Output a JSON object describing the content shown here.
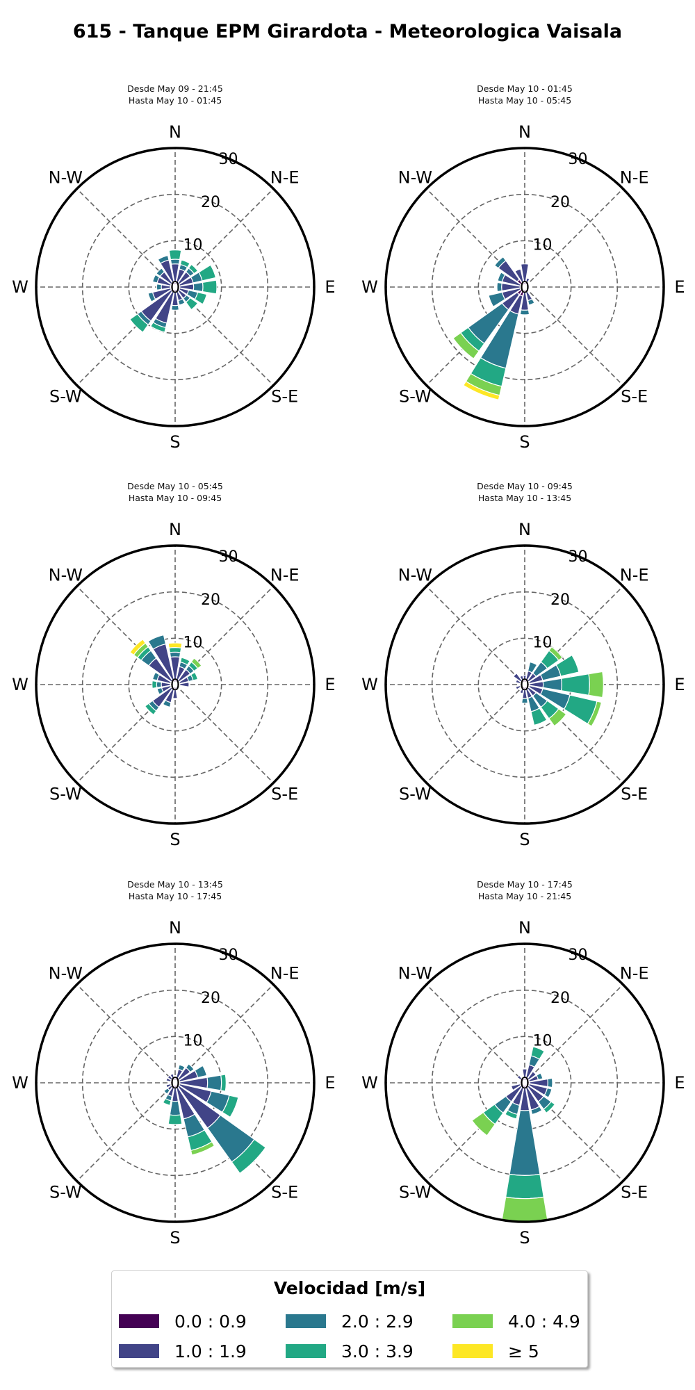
{
  "title": "615 - Tanque EPM Girardota - Meteorologica Vaisala",
  "legend": {
    "title": "Velocidad [m/s]",
    "items": [
      {
        "label": "0.0 : 0.9",
        "color": "#440154"
      },
      {
        "label": "1.0 : 1.9",
        "color": "#414487"
      },
      {
        "label": "2.0 : 2.9",
        "color": "#2a788e"
      },
      {
        "label": "3.0 : 3.9",
        "color": "#22a884"
      },
      {
        "label": "4.0 : 4.9",
        "color": "#7ad151"
      },
      {
        "label": "≥  5",
        "color": "#fde725"
      }
    ]
  },
  "chart_data": [
    {
      "type": "windrose",
      "title_lines": [
        "Desde May 09 - 21:45",
        "Hasta May 10 - 01:45"
      ],
      "direction_labels": [
        "N",
        "N-E",
        "E",
        "S-E",
        "S",
        "S-W",
        "W",
        "N-W"
      ],
      "radial_ticks": [
        0,
        10,
        20,
        30
      ],
      "rlim": [
        0,
        30
      ],
      "directions_deg": [
        0,
        22.5,
        45,
        67.5,
        90,
        112.5,
        135,
        157.5,
        180,
        202.5,
        225,
        247.5,
        270,
        292.5,
        315,
        337.5
      ],
      "bins": [
        "0.0 : 0.9",
        "1.0 : 1.9",
        "2.0 : 2.9",
        "3.0 : 3.9",
        "4.0 : 4.9",
        "≥  5"
      ],
      "frequency_percent": [
        [
          1,
          4,
          1,
          2,
          0,
          0
        ],
        [
          1,
          3,
          1,
          1,
          0,
          0
        ],
        [
          1,
          3,
          1,
          1,
          0,
          0
        ],
        [
          1,
          3,
          2,
          3,
          0,
          0
        ],
        [
          1,
          3,
          2,
          3,
          0,
          0
        ],
        [
          1,
          2,
          2,
          2,
          0,
          0
        ],
        [
          1,
          2,
          1,
          2,
          0,
          0
        ],
        [
          1,
          2,
          1,
          0,
          0,
          0
        ],
        [
          1,
          3,
          1,
          0,
          0,
          0
        ],
        [
          1,
          7,
          1,
          1,
          0,
          0
        ],
        [
          1,
          8,
          1,
          2,
          0,
          0
        ],
        [
          1,
          4,
          1,
          0,
          0,
          0
        ],
        [
          1,
          2,
          1,
          0,
          0,
          0
        ],
        [
          1,
          3,
          1,
          0,
          0,
          0
        ],
        [
          1,
          3,
          1,
          0,
          0,
          0
        ],
        [
          1,
          5,
          1,
          0,
          0,
          0
        ]
      ]
    },
    {
      "type": "windrose",
      "title_lines": [
        "Desde May 10 - 01:45",
        "Hasta May 10 - 05:45"
      ],
      "direction_labels": [
        "N",
        "N-E",
        "E",
        "S-E",
        "S",
        "S-W",
        "W",
        "N-W"
      ],
      "radial_ticks": [
        0,
        10,
        20,
        30
      ],
      "rlim": [
        0,
        30
      ],
      "directions_deg": [
        0,
        22.5,
        45,
        67.5,
        90,
        112.5,
        135,
        157.5,
        180,
        202.5,
        225,
        247.5,
        270,
        292.5,
        315,
        337.5
      ],
      "bins": [
        "0.0 : 0.9",
        "1.0 : 1.9",
        "2.0 : 2.9",
        "3.0 : 3.9",
        "4.0 : 4.9",
        "≥  5"
      ],
      "frequency_percent": [
        [
          1,
          4,
          0,
          0,
          0,
          0
        ],
        [
          1,
          1,
          0,
          0,
          0,
          0
        ],
        [
          0,
          1,
          0,
          0,
          0,
          0
        ],
        [
          0,
          1,
          0,
          0,
          0,
          0
        ],
        [
          0,
          1,
          0,
          0,
          0,
          0
        ],
        [
          0,
          1,
          0,
          0,
          0,
          0
        ],
        [
          0,
          1,
          0,
          0,
          0,
          0
        ],
        [
          1,
          2,
          1,
          0,
          0,
          0
        ],
        [
          1,
          4,
          1,
          0,
          0,
          0
        ],
        [
          2,
          4,
          12,
          4,
          2,
          1
        ],
        [
          2,
          4,
          9,
          2,
          2,
          0
        ],
        [
          1,
          4,
          3,
          0,
          0,
          0
        ],
        [
          1,
          4,
          1,
          0,
          0,
          0
        ],
        [
          1,
          4,
          1,
          0,
          0,
          0
        ],
        [
          2,
          5,
          1,
          0,
          0,
          0
        ],
        [
          1,
          3,
          0,
          0,
          0,
          0
        ]
      ]
    },
    {
      "type": "windrose",
      "title_lines": [
        "Desde May 10 - 05:45",
        "Hasta May 10 - 09:45"
      ],
      "direction_labels": [
        "N",
        "N-E",
        "E",
        "S-E",
        "S",
        "S-W",
        "W",
        "N-W"
      ],
      "radial_ticks": [
        0,
        10,
        20,
        30
      ],
      "rlim": [
        0,
        30
      ],
      "directions_deg": [
        0,
        22.5,
        45,
        67.5,
        90,
        112.5,
        135,
        157.5,
        180,
        202.5,
        225,
        247.5,
        270,
        292.5,
        315,
        337.5
      ],
      "bins": [
        "0.0 : 0.9",
        "1.0 : 1.9",
        "2.0 : 2.9",
        "3.0 : 3.9",
        "4.0 : 4.9",
        "≥  5"
      ],
      "frequency_percent": [
        [
          1,
          5,
          1,
          1,
          0,
          1
        ],
        [
          1,
          3,
          1,
          1,
          0,
          0
        ],
        [
          1,
          3,
          1,
          1,
          1,
          0
        ],
        [
          1,
          2,
          1,
          1,
          0,
          0
        ],
        [
          1,
          2,
          0,
          0,
          0,
          0
        ],
        [
          0,
          1,
          0,
          0,
          0,
          0
        ],
        [
          0,
          1,
          0,
          0,
          0,
          0
        ],
        [
          0,
          1,
          0,
          0,
          0,
          0
        ],
        [
          1,
          2,
          0,
          0,
          0,
          0
        ],
        [
          1,
          3,
          1,
          0,
          0,
          0
        ],
        [
          1,
          5,
          1,
          1,
          0,
          0
        ],
        [
          1,
          2,
          1,
          0,
          0,
          0
        ],
        [
          1,
          2,
          1,
          1,
          0,
          0
        ],
        [
          1,
          3,
          1,
          0,
          0,
          0
        ],
        [
          1,
          6,
          2,
          1,
          1,
          1
        ],
        [
          1,
          8,
          2,
          0,
          0,
          0
        ]
      ]
    },
    {
      "type": "windrose",
      "title_lines": [
        "Desde May 10 - 09:45",
        "Hasta May 10 - 13:45"
      ],
      "direction_labels": [
        "N",
        "N-E",
        "E",
        "S-E",
        "S",
        "S-W",
        "W",
        "N-W"
      ],
      "radial_ticks": [
        0,
        10,
        20,
        30
      ],
      "rlim": [
        0,
        30
      ],
      "directions_deg": [
        0,
        22.5,
        45,
        67.5,
        90,
        112.5,
        135,
        157.5,
        180,
        202.5,
        225,
        247.5,
        270,
        292.5,
        315,
        337.5
      ],
      "bins": [
        "0.0 : 0.9",
        "1.0 : 1.9",
        "2.0 : 2.9",
        "3.0 : 3.9",
        "4.0 : 4.9",
        "≥  5"
      ],
      "frequency_percent": [
        [
          1,
          1,
          0,
          0,
          0,
          0
        ],
        [
          1,
          2,
          2,
          0,
          0,
          0
        ],
        [
          1,
          2,
          3,
          3,
          1,
          0
        ],
        [
          1,
          3,
          4,
          4,
          0,
          0
        ],
        [
          1,
          3,
          4,
          6,
          3,
          0
        ],
        [
          1,
          3,
          6,
          6,
          1,
          0
        ],
        [
          1,
          2,
          3,
          3,
          2,
          0
        ],
        [
          1,
          2,
          3,
          3,
          0,
          0
        ],
        [
          1,
          2,
          1,
          0,
          0,
          0
        ],
        [
          1,
          1,
          0,
          0,
          0,
          0
        ],
        [
          1,
          0,
          0,
          0,
          0,
          0
        ],
        [
          1,
          1,
          0,
          0,
          0,
          0
        ],
        [
          1,
          0,
          0,
          0,
          0,
          0
        ],
        [
          1,
          1,
          0,
          0,
          0,
          0
        ],
        [
          1,
          2,
          0,
          0,
          0,
          0
        ],
        [
          1,
          1,
          0,
          0,
          0,
          0
        ]
      ]
    },
    {
      "type": "windrose",
      "title_lines": [
        "Desde May 10 - 13:45",
        "Hasta May 10 - 17:45"
      ],
      "direction_labels": [
        "N",
        "N-E",
        "E",
        "S-E",
        "S",
        "S-W",
        "W",
        "N-W"
      ],
      "radial_ticks": [
        0,
        10,
        20,
        30
      ],
      "rlim": [
        0,
        30
      ],
      "directions_deg": [
        0,
        22.5,
        45,
        67.5,
        90,
        112.5,
        135,
        157.5,
        180,
        202.5,
        225,
        247.5,
        270,
        292.5,
        315,
        337.5
      ],
      "bins": [
        "0.0 : 0.9",
        "1.0 : 1.9",
        "2.0 : 2.9",
        "3.0 : 3.9",
        "4.0 : 4.9",
        "≥  5"
      ],
      "frequency_percent": [
        [
          1,
          0,
          0,
          0,
          0,
          0
        ],
        [
          1,
          2,
          1,
          0,
          0,
          0
        ],
        [
          1,
          3,
          1,
          0,
          0,
          0
        ],
        [
          1,
          4,
          2,
          0,
          0,
          0
        ],
        [
          1,
          6,
          3,
          1,
          0,
          0
        ],
        [
          1,
          7,
          4,
          2,
          0,
          0
        ],
        [
          1,
          11,
          9,
          3,
          0,
          0
        ],
        [
          1,
          7,
          4,
          3,
          1,
          0
        ],
        [
          1,
          3,
          3,
          2,
          0,
          0
        ],
        [
          1,
          2,
          1,
          1,
          0,
          0
        ],
        [
          1,
          1,
          1,
          0,
          0,
          0
        ],
        [
          1,
          1,
          0,
          0,
          0,
          0
        ],
        [
          1,
          0,
          0,
          0,
          0,
          0
        ],
        [
          1,
          1,
          0,
          0,
          0,
          0
        ],
        [
          1,
          1,
          0,
          0,
          0,
          0
        ],
        [
          1,
          1,
          0,
          0,
          0,
          0
        ]
      ]
    },
    {
      "type": "windrose",
      "title_lines": [
        "Desde May 10 - 17:45",
        "Hasta May 10 - 21:45"
      ],
      "direction_labels": [
        "N",
        "N-E",
        "E",
        "S-E",
        "S",
        "S-W",
        "W",
        "N-W"
      ],
      "radial_ticks": [
        0,
        10,
        20,
        30
      ],
      "rlim": [
        0,
        30
      ],
      "directions_deg": [
        0,
        22.5,
        45,
        67.5,
        90,
        112.5,
        135,
        157.5,
        180,
        202.5,
        225,
        247.5,
        270,
        292.5,
        315,
        337.5
      ],
      "bins": [
        "0.0 : 0.9",
        "1.0 : 1.9",
        "2.0 : 2.9",
        "3.0 : 3.9",
        "4.0 : 4.9",
        "≥  5"
      ],
      "frequency_percent": [
        [
          1,
          2,
          0,
          0,
          0,
          0
        ],
        [
          1,
          3,
          2,
          2,
          0,
          0
        ],
        [
          1,
          2,
          0,
          0,
          0,
          0
        ],
        [
          1,
          2,
          1,
          0,
          0,
          0
        ],
        [
          1,
          4,
          1,
          0,
          0,
          0
        ],
        [
          1,
          4,
          1,
          0,
          0,
          0
        ],
        [
          1,
          4,
          2,
          1,
          0,
          0
        ],
        [
          1,
          5,
          1,
          0,
          0,
          0
        ],
        [
          1,
          5,
          14,
          5,
          5,
          0
        ],
        [
          1,
          4,
          2,
          1,
          0,
          0
        ],
        [
          1,
          4,
          3,
          3,
          3,
          0
        ],
        [
          1,
          2,
          0,
          0,
          0,
          0
        ],
        [
          1,
          0,
          0,
          0,
          0,
          0
        ],
        [
          1,
          0,
          0,
          0,
          0,
          0
        ],
        [
          1,
          1,
          0,
          0,
          0,
          0
        ],
        [
          1,
          0,
          0,
          0,
          0,
          0
        ]
      ]
    }
  ]
}
